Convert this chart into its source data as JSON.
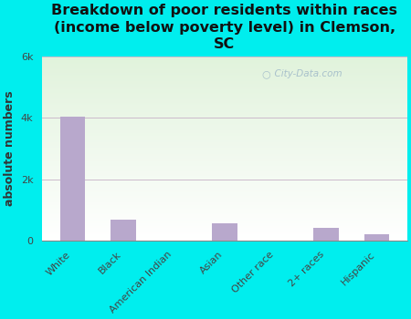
{
  "title": "Breakdown of poor residents within races\n(income below poverty level) in Clemson,\nSC",
  "categories": [
    "White",
    "Black",
    "American Indian",
    "Asian",
    "Other race",
    "2+ races",
    "Hispanic"
  ],
  "values": [
    4050,
    700,
    0,
    580,
    0,
    430,
    220
  ],
  "bar_color": "#b8a8cc",
  "ylabel": "absolute numbers",
  "ylim": [
    0,
    6000
  ],
  "yticks": [
    0,
    2000,
    4000,
    6000
  ],
  "ytick_labels": [
    "0",
    "2k",
    "4k",
    "6k"
  ],
  "background_color": "#00eeee",
  "grid_color": "#ccbbcc",
  "title_fontsize": 11.5,
  "ylabel_fontsize": 9,
  "xtick_fontsize": 8,
  "ytick_fontsize": 8,
  "watermark": "City-Data.com"
}
